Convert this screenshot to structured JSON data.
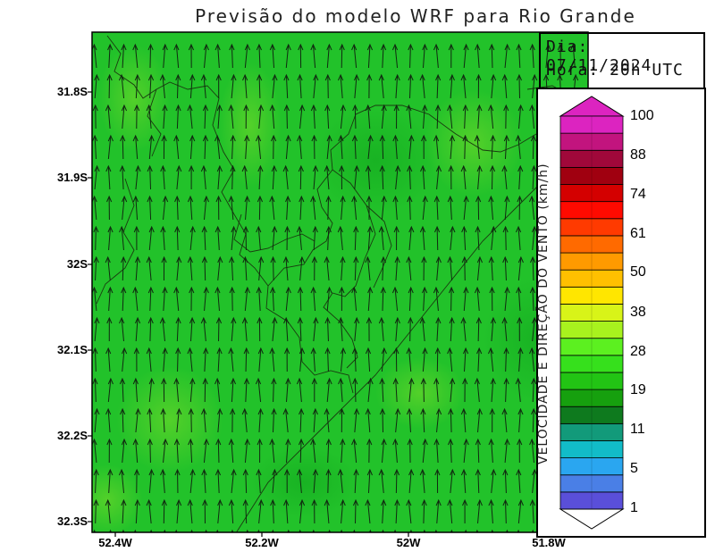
{
  "title": "Previsão do modelo WRF para Rio Grande",
  "info": {
    "day": "Dia: 07/11/2024",
    "hour": "Hora: 20h UTC"
  },
  "axes": {
    "lat_labels": [
      "31.8S",
      "31.9S",
      "32S",
      "32.1S",
      "32.2S",
      "32.3S"
    ],
    "lon_labels": [
      "52.4W",
      "52.2W",
      "52W",
      "51.8W"
    ]
  },
  "colorbar": {
    "title": "VELOCIDADE E DIREÇÃO DO VENTO (km/h)",
    "labels": [
      "100",
      "88",
      "74",
      "61",
      "50",
      "38",
      "28",
      "19",
      "11",
      "5",
      "1"
    ],
    "colors": [
      "#5a4fd9",
      "#4a7fe6",
      "#2aa6f0",
      "#12bcc8",
      "#129a7a",
      "#0e7a1e",
      "#16a00e",
      "#22c414",
      "#36e01c",
      "#5cf020",
      "#a8f21e",
      "#d8f418",
      "#ffe600",
      "#ffc000",
      "#ff9a00",
      "#ff6a00",
      "#ff3a00",
      "#ff0a00",
      "#d40000",
      "#a00010",
      "#a0083a",
      "#c2147e",
      "#dc24c0"
    ]
  },
  "field": {
    "base_color": "#22c22a",
    "light_color": "#5ad82a",
    "wind_direction": "north"
  }
}
